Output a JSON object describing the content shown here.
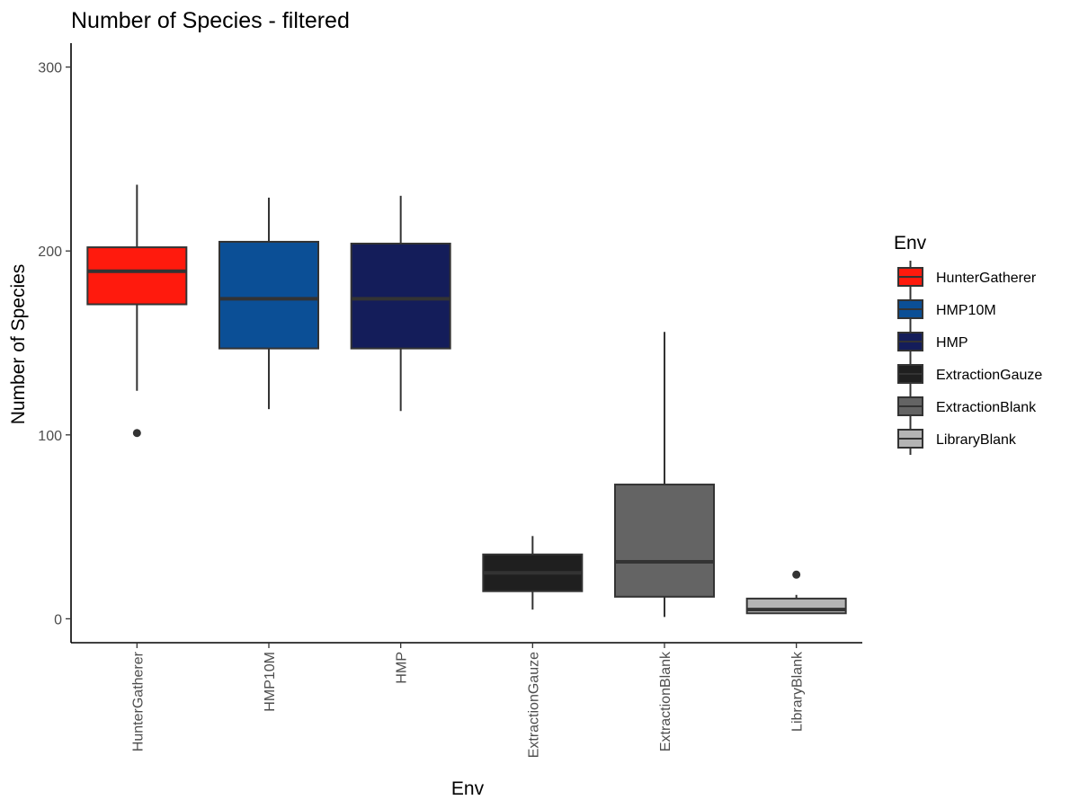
{
  "chart_data": {
    "type": "boxplot",
    "title": "Number of Species - filtered",
    "xlabel": "Env",
    "ylabel": "Number of Species",
    "ylim": [
      -13,
      313
    ],
    "yticks": [
      0,
      100,
      200,
      300
    ],
    "grid": false,
    "legend": {
      "title": "Env",
      "position": "right"
    },
    "categories": [
      "HunterGatherer",
      "HMP10M",
      "HMP",
      "ExtractionGauze",
      "ExtractionBlank",
      "LibraryBlank"
    ],
    "colors": [
      "#ff1a0d",
      "#0b4f96",
      "#141d5a",
      "#1f1f1f",
      "#646464",
      "#b4b4b4"
    ],
    "boxes": [
      {
        "category": "HunterGatherer",
        "min": 124,
        "q1": 171,
        "median": 189,
        "q3": 202,
        "max": 236,
        "outliers": [
          101
        ]
      },
      {
        "category": "HMP10M",
        "min": 114,
        "q1": 147,
        "median": 174,
        "q3": 205,
        "max": 229,
        "outliers": []
      },
      {
        "category": "HMP",
        "min": 113,
        "q1": 147,
        "median": 174,
        "q3": 204,
        "max": 230,
        "outliers": []
      },
      {
        "category": "ExtractionGauze",
        "min": 5,
        "q1": 15,
        "median": 25,
        "q3": 35,
        "max": 45,
        "outliers": []
      },
      {
        "category": "ExtractionBlank",
        "min": 1,
        "q1": 12,
        "median": 31,
        "q3": 73,
        "max": 156,
        "outliers": []
      },
      {
        "category": "LibraryBlank",
        "min": 3,
        "q1": 3,
        "median": 5,
        "q3": 11,
        "max": 13,
        "outliers": [
          24
        ]
      }
    ]
  }
}
